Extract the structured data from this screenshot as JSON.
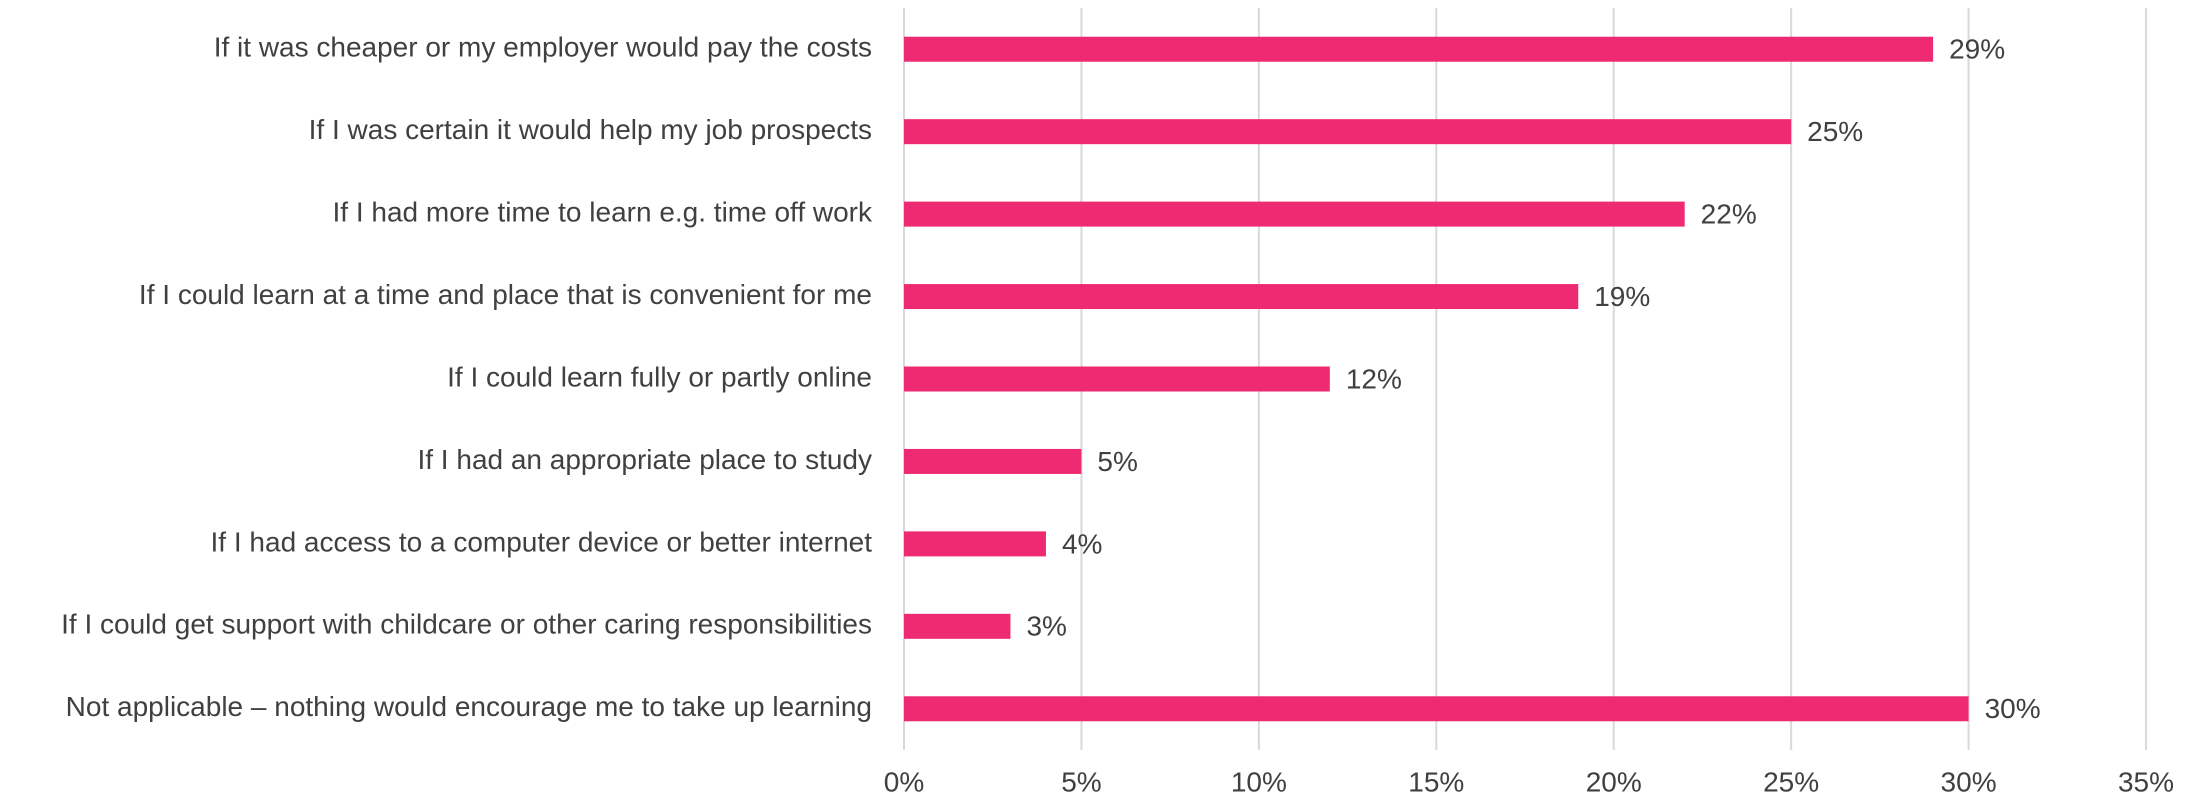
{
  "chart_data": {
    "type": "bar",
    "orientation": "horizontal",
    "categories": [
      "If it was cheaper or my employer would pay the costs",
      "If I was certain it would help my job prospects",
      "If I had more time to learn e.g. time off work",
      "If I could learn at a time and place that is convenient for me",
      "If I could learn fully or partly online",
      "If I had an appropriate place to study",
      "If I had access to a computer device or better internet",
      "If I could get support with childcare or other caring responsibilities",
      "Not applicable – nothing would encourage me to take up learning"
    ],
    "values": [
      29,
      25,
      22,
      19,
      12,
      5,
      4,
      3,
      30
    ],
    "value_labels": [
      "29%",
      "25%",
      "22%",
      "19%",
      "12%",
      "5%",
      "4%",
      "3%",
      "30%"
    ],
    "color": "#ee2a72",
    "xlim": [
      0,
      35
    ],
    "xticks": [
      {
        "value": 0,
        "label": "0%"
      },
      {
        "value": 5,
        "label": "5%"
      },
      {
        "value": 10,
        "label": "10%"
      },
      {
        "value": 15,
        "label": "15%"
      },
      {
        "value": 20,
        "label": "20%"
      },
      {
        "value": 25,
        "label": "25%"
      },
      {
        "value": 30,
        "label": "30%"
      },
      {
        "value": 35,
        "label": "35%"
      }
    ],
    "grid": true
  }
}
